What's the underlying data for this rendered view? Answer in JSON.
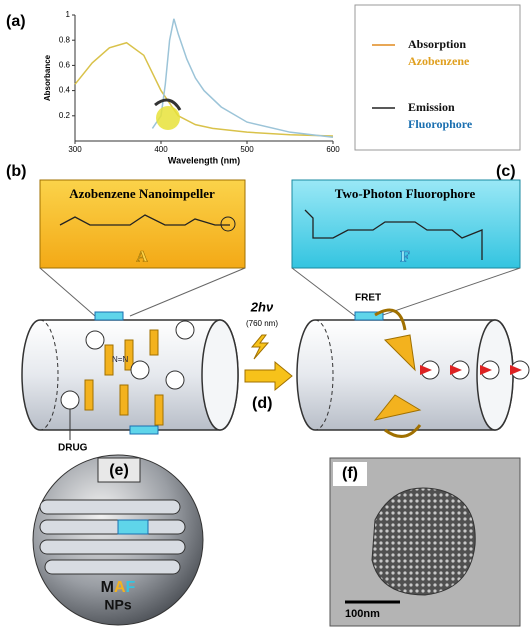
{
  "panel_labels": [
    "(a)",
    "(b)",
    "(c)",
    "(d)",
    "(e)",
    "(f)"
  ],
  "chart_data": {
    "type": "line",
    "x_label": "Wavelength (nm)",
    "y_label": "Absorbance",
    "xlim": [
      300,
      600
    ],
    "xticks": [
      300,
      400,
      500,
      600
    ],
    "ylim": [
      0,
      1
    ],
    "yticks": [
      0.2,
      0.4,
      0.6,
      0.8,
      1
    ],
    "series": [
      {
        "name": "Absorption",
        "molecule": "Azobenzene",
        "color": "#d9c24a",
        "legend_color": "#e08a1e",
        "molecule_color": "#e0a020",
        "x": [
          300,
          320,
          340,
          360,
          380,
          400,
          420,
          440,
          460,
          500,
          550,
          600
        ],
        "values": [
          0.45,
          0.62,
          0.74,
          0.78,
          0.68,
          0.4,
          0.2,
          0.13,
          0.1,
          0.07,
          0.05,
          0.04
        ]
      },
      {
        "name": "Emission",
        "molecule": "Fluorophore",
        "color": "#9cc4d8",
        "legend_color": "#222222",
        "molecule_color": "#1a6fb0",
        "x": [
          390,
          400,
          405,
          410,
          415,
          420,
          430,
          440,
          450,
          470,
          500,
          550,
          600
        ],
        "values": [
          0.1,
          0.2,
          0.45,
          0.8,
          0.97,
          0.85,
          0.65,
          0.5,
          0.4,
          0.27,
          0.15,
          0.07,
          0.03
        ]
      }
    ]
  },
  "panel_b": {
    "title": "Azobenzene Nanoimpeller",
    "label": "A",
    "drug": "DRUG",
    "azo": "N=N"
  },
  "panel_c": {
    "title": "Two-Photon Fluorophore",
    "label": "F",
    "fret": "FRET"
  },
  "excitation": {
    "label": "2hν",
    "wavelength": "(760 nm)"
  },
  "panel_e": {
    "name_letters": [
      "M",
      "A",
      "F"
    ],
    "line2": "NPs"
  },
  "panel_f": {
    "scale": "100nm"
  }
}
